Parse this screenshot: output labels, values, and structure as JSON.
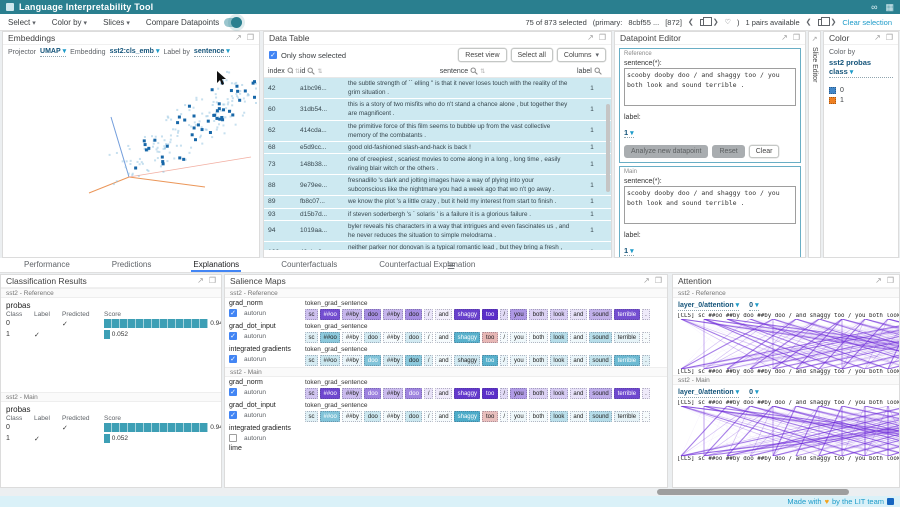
{
  "header": {
    "title": "Language Interpretability Tool"
  },
  "toolbar": {
    "menus": [
      "Select",
      "Color by",
      "Slices"
    ],
    "compare_label": "Compare Datapoints",
    "status": "75 of 873 selected",
    "primary_prefix": "(primary:",
    "primary_id": "8cbf55 ...",
    "primary_index": "[872]",
    "pairs": "1 pairs available",
    "clear": "Clear selection"
  },
  "embeddings": {
    "title": "Embeddings",
    "projector_label": "Projector",
    "projector_value": "UMAP",
    "embedding_label": "Embedding",
    "embedding_value": "sst2:cls_emb",
    "labelby_label": "Label by",
    "labelby_value": "sentence"
  },
  "data_table": {
    "title": "Data Table",
    "only_show_selected": "Only show selected",
    "buttons": [
      "Reset view",
      "Select all",
      "Columns"
    ],
    "columns": [
      "index",
      "id",
      "sentence",
      "label"
    ],
    "rows": [
      {
        "index": "42",
        "id": "a1bc96...",
        "sentence": "the subtle strength of `` elling '' is that it never loses touch with the reality of the grim situation .",
        "label": "1"
      },
      {
        "index": "60",
        "id": "31db54...",
        "sentence": "this is a story of two misfits who do n't stand a chance alone , but together they are magnificent .",
        "label": "1"
      },
      {
        "index": "62",
        "id": "414cda...",
        "sentence": "the primitive force of this film seems to bubble up from the vast collective memory of the combatants .",
        "label": "1"
      },
      {
        "index": "68",
        "id": "e5d9cc...",
        "sentence": "good old-fashioned slash-and-hack is back !",
        "label": "1"
      },
      {
        "index": "73",
        "id": "148b38...",
        "sentence": "one of creepiest , scariest movies to come along in a long , long time , easily rivaling blair witch or the others .",
        "label": "1"
      },
      {
        "index": "88",
        "id": "9e79ee...",
        "sentence": "fresnadillo 's dark and jolting images have a way of plying into your subconscious like the nightmare you had a week ago that wo n't go away .",
        "label": "1"
      },
      {
        "index": "89",
        "id": "fb8c07...",
        "sentence": "we know the plot 's a little crazy , but it held my interest from start to finish .",
        "label": "1"
      },
      {
        "index": "93",
        "id": "d15b7d...",
        "sentence": "if steven soderbergh 's ` solaris ' is a failure it is a glorious failure .",
        "label": "1"
      },
      {
        "index": "94",
        "id": "1019aa...",
        "sentence": "byler reveals his characters in a way that intrigues and even fascinates us , and he never reduces the situation to simple melodrama .",
        "label": "1"
      },
      {
        "index": "100",
        "id": "40aba9...",
        "sentence": "neither parker nor donovan is a typical romantic lead , but they bring a fresh , quirky charm to the formula .",
        "label": "1"
      },
      {
        "index": "123",
        "id": "dba54c...",
        "sentence": "turns potentially forgettable formula into something strangely diverting .",
        "label": "1"
      }
    ]
  },
  "datapoint_editor": {
    "title": "Datapoint Editor",
    "sections": [
      {
        "name": "Reference",
        "sentence_label": "sentence(*):",
        "sentence": "scooby dooby doo / and shaggy too / you both look and sound terrible .",
        "label_label": "label:",
        "label_value": "1",
        "buttons": [
          {
            "label": "Analyze new datapoint",
            "disabled": true
          },
          {
            "label": "Reset",
            "disabled": true
          },
          {
            "label": "Clear",
            "disabled": false
          }
        ]
      },
      {
        "name": "Main",
        "sentence_label": "sentence(*):",
        "sentence": "scooby dooby doo / and shaggy too / you both look and sound terrible .",
        "label_label": "label:",
        "label_value": "1",
        "buttons": [
          {
            "label": "Analyze new datapoint",
            "disabled": true
          },
          {
            "label": "Reset",
            "disabled": true
          },
          {
            "label": "Clear",
            "disabled": false
          }
        ]
      }
    ]
  },
  "slice_editor": {
    "title": "Slice Editor"
  },
  "color_panel": {
    "title": "Color",
    "color_by_label": "Color by",
    "value": "sst2 probas class",
    "legend": [
      {
        "label": "0",
        "color": "#4287c8"
      },
      {
        "label": "1",
        "color": "#ef8022"
      }
    ]
  },
  "tabs": {
    "items": [
      "Performance",
      "Predictions",
      "Explanations",
      "Counterfactuals",
      "Counterfactual Explanation"
    ],
    "active": "Explanations"
  },
  "classification": {
    "title": "Classification Results",
    "sections": [
      {
        "name": "sst2 - Reference",
        "group": "probas",
        "columns": [
          "Class",
          "Label",
          "Predicted",
          "Score"
        ],
        "rows": [
          {
            "class": "0",
            "label": false,
            "predicted": true,
            "score": 0.948
          },
          {
            "class": "1",
            "label": true,
            "predicted": false,
            "score": 0.052
          }
        ]
      },
      {
        "name": "sst2 - Main",
        "group": "probas",
        "columns": [
          "Class",
          "Label",
          "Predicted",
          "Score"
        ],
        "rows": [
          {
            "class": "0",
            "label": false,
            "predicted": true,
            "score": 0.948
          },
          {
            "class": "1",
            "label": true,
            "predicted": false,
            "score": 0.052
          }
        ]
      }
    ]
  },
  "salience": {
    "title": "Salience Maps",
    "field_label": "token_grad_sentence",
    "autorun_label": "autorun",
    "tokens": [
      "sc",
      "##oo",
      "##by",
      "doo",
      "##by",
      "doo",
      "/",
      "and",
      "shaggy",
      "too",
      "/",
      "you",
      "both",
      "look",
      "and",
      "sound",
      "terrible",
      "."
    ],
    "palette_colors": {
      "purple": "#5b2fc9",
      "blue": "#2e9dbf",
      "negative": "#c9605b"
    },
    "sections": [
      {
        "name": "sst2 - Reference",
        "methods": [
          {
            "name": "grad_norm",
            "autorun": true,
            "palette": "purple",
            "weights": [
              0.3,
              0.85,
              0.35,
              0.55,
              0.35,
              0.55,
              0.12,
              0.08,
              0.92,
              1.0,
              0.18,
              0.5,
              0.22,
              0.25,
              0.15,
              0.38,
              0.85,
              0.1
            ]
          },
          {
            "name": "grad_dot_input",
            "autorun": true,
            "palette": "diverging",
            "weights": [
              0.15,
              0.55,
              0.05,
              0.22,
              0.05,
              0.22,
              0.04,
              0.05,
              0.8,
              -0.45,
              0.05,
              0.08,
              0.06,
              0.35,
              0.08,
              0.35,
              0.12,
              0.04
            ]
          },
          {
            "name": "integrated gradients",
            "autorun": true,
            "palette": "blue",
            "weights": [
              0.2,
              0.25,
              0.1,
              0.6,
              0.2,
              0.55,
              0.15,
              0.06,
              0.22,
              0.8,
              0.1,
              0.1,
              0.12,
              0.2,
              0.1,
              0.28,
              0.7,
              0.15
            ]
          }
        ]
      },
      {
        "name": "sst2 - Main",
        "methods": [
          {
            "name": "grad_norm",
            "autorun": true,
            "palette": "purple",
            "weights": [
              0.28,
              0.88,
              0.32,
              0.6,
              0.32,
              0.58,
              0.14,
              0.1,
              0.95,
              1.0,
              0.18,
              0.48,
              0.22,
              0.25,
              0.15,
              0.4,
              0.88,
              0.1
            ]
          },
          {
            "name": "grad_dot_input",
            "autorun": true,
            "palette": "diverging",
            "weights": [
              0.15,
              0.6,
              0.06,
              0.25,
              0.06,
              0.25,
              0.05,
              0.05,
              0.85,
              -0.4,
              0.05,
              0.08,
              0.06,
              0.32,
              0.08,
              0.35,
              0.12,
              0.04
            ]
          },
          {
            "name": "integrated gradients",
            "autorun": false,
            "palette": "blue",
            "weights": null
          },
          {
            "name": "lime",
            "autorun": null,
            "palette": null,
            "weights": null
          }
        ]
      }
    ]
  },
  "attention": {
    "title": "Attention",
    "line_color": "#6d28d9",
    "sections": [
      {
        "name": "sst2 - Reference",
        "layer": "layer_0/attention",
        "head": "0",
        "tokens": "[CLS] sc ##oo ##by doo ##by doo / and shaggy too / you both look and sound terrible ."
      },
      {
        "name": "sst2 - Main",
        "layer": "layer_0/attention",
        "head": "0",
        "tokens": "[CLS] sc ##oo ##by doo ##by doo / and shaggy too / you both look and sound terrible ."
      }
    ]
  },
  "footer": {
    "made_with": "Made with",
    "heart": "♥",
    "by": "by the LIT team"
  }
}
